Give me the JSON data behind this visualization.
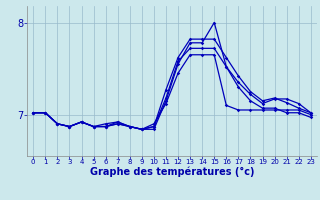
{
  "xlabel": "Graphe des températures (°c)",
  "bg_color": "#cce8ec",
  "line_color": "#0000bb",
  "grid_color": "#99bbcc",
  "text_color": "#0000aa",
  "ylim": [
    6.55,
    8.18
  ],
  "yticks": [
    7,
    8
  ],
  "xlim": [
    -0.5,
    23.5
  ],
  "xticks": [
    0,
    1,
    2,
    3,
    4,
    5,
    6,
    7,
    8,
    9,
    10,
    11,
    12,
    13,
    14,
    15,
    16,
    17,
    18,
    19,
    20,
    21,
    22,
    23
  ],
  "hours": [
    0,
    1,
    2,
    3,
    4,
    5,
    6,
    7,
    8,
    9,
    10,
    11,
    12,
    13,
    14,
    15,
    16,
    17,
    18,
    19,
    20,
    21,
    22,
    23
  ],
  "line1": [
    7.02,
    7.02,
    6.9,
    6.87,
    6.92,
    6.87,
    6.87,
    6.9,
    6.87,
    6.84,
    6.84,
    7.15,
    7.55,
    7.78,
    7.78,
    8.0,
    7.52,
    7.3,
    7.15,
    7.07,
    7.07,
    7.02,
    7.02,
    6.97
  ],
  "line2": [
    7.02,
    7.02,
    6.9,
    6.87,
    6.92,
    6.87,
    6.9,
    6.92,
    6.87,
    6.84,
    6.87,
    7.27,
    7.62,
    7.82,
    7.82,
    7.82,
    7.62,
    7.42,
    7.25,
    7.15,
    7.18,
    7.13,
    7.07,
    7.02
  ],
  "line3": [
    7.02,
    7.02,
    6.9,
    6.87,
    6.92,
    6.87,
    6.87,
    6.9,
    6.87,
    6.84,
    6.87,
    7.18,
    7.58,
    7.72,
    7.72,
    7.72,
    7.52,
    7.35,
    7.22,
    7.12,
    7.17,
    7.17,
    7.12,
    7.02
  ],
  "line4": [
    7.02,
    7.02,
    6.9,
    6.87,
    6.92,
    6.87,
    6.87,
    6.92,
    6.87,
    6.84,
    6.9,
    7.12,
    7.45,
    7.65,
    7.65,
    7.65,
    7.1,
    7.05,
    7.05,
    7.05,
    7.05,
    7.05,
    7.05,
    7.0
  ]
}
